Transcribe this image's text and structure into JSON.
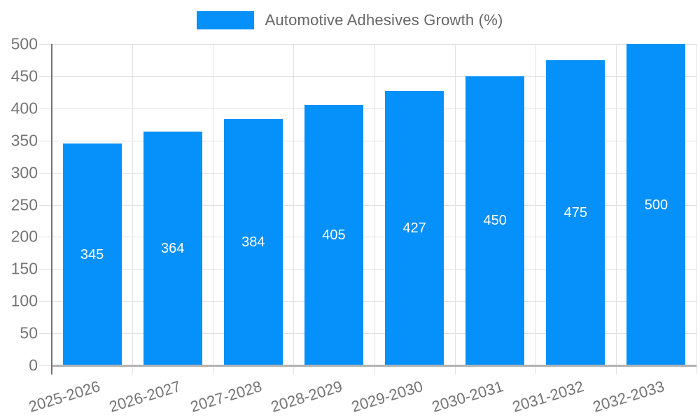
{
  "chart_data": {
    "type": "bar",
    "title": "",
    "legend_label": "Automotive Adhesives Growth (%)",
    "legend_position": "top",
    "categories": [
      "2025-2026",
      "2026-2027",
      "2027-2028",
      "2028-2029",
      "2029-2030",
      "2030-2031",
      "2031-2032",
      "2032-2033"
    ],
    "series": [
      {
        "name": "Automotive Adhesives Growth (%)",
        "values": [
          345,
          364,
          384,
          405,
          427,
          450,
          475,
          500
        ]
      }
    ],
    "values": [
      345,
      364,
      384,
      405,
      427,
      450,
      475,
      500
    ],
    "value_labels": [
      "345",
      "364",
      "384",
      "405",
      "427",
      "450",
      "475",
      "500"
    ],
    "ylim": [
      0,
      500
    ],
    "yticks": [
      0,
      50,
      100,
      150,
      200,
      250,
      300,
      350,
      400,
      450,
      500
    ],
    "grid": true,
    "colors": {
      "bar": "#0690fa",
      "grid_line": "#e1e1e1",
      "y_axis_line": "#757575",
      "x_axis_line": "#b3b3b3",
      "axis_text": "#757575",
      "legend_text": "#666666",
      "value_text": "#ffffff",
      "background": "#ffffff"
    }
  }
}
